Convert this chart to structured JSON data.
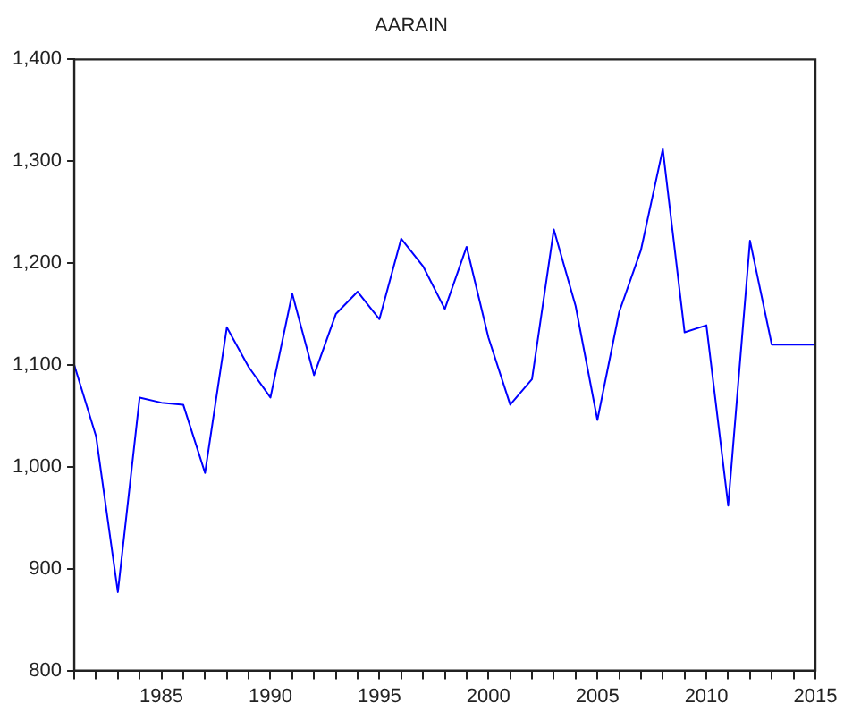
{
  "chart_data": {
    "type": "line",
    "title": "AARAIN",
    "x": [
      1981,
      1982,
      1983,
      1984,
      1985,
      1986,
      1987,
      1988,
      1989,
      1990,
      1991,
      1992,
      1993,
      1994,
      1995,
      1996,
      1997,
      1998,
      1999,
      2000,
      2001,
      2002,
      2003,
      2004,
      2005,
      2006,
      2007,
      2008,
      2009,
      2010,
      2011,
      2012,
      2013,
      2014,
      2015
    ],
    "series": [
      {
        "color": "#0000ff",
        "values": [
          1100,
          1030,
          877,
          1068,
          1063,
          1061,
          994,
          1137,
          1098,
          1068,
          1170,
          1090,
          1150,
          1172,
          1145,
          1224,
          1197,
          1155,
          1216,
          1127,
          1061,
          1086,
          1233,
          1158,
          1046,
          1152,
          1213,
          1312,
          1132,
          1139,
          962,
          1222,
          1120,
          1120,
          1120
        ]
      }
    ],
    "xlim": [
      1981,
      2015
    ],
    "xticks": [
      {
        "value": 1981,
        "label": null
      },
      {
        "value": 1982,
        "label": null
      },
      {
        "value": 1983,
        "label": null
      },
      {
        "value": 1984,
        "label": null
      },
      1985,
      {
        "value": 1986,
        "label": null
      },
      {
        "value": 1987,
        "label": null
      },
      {
        "value": 1988,
        "label": null
      },
      {
        "value": 1989,
        "label": null
      },
      1990,
      {
        "value": 1991,
        "label": null
      },
      {
        "value": 1992,
        "label": null
      },
      {
        "value": 1993,
        "label": null
      },
      {
        "value": 1994,
        "label": null
      },
      1995,
      {
        "value": 1996,
        "label": null
      },
      {
        "value": 1997,
        "label": null
      },
      {
        "value": 1998,
        "label": null
      },
      {
        "value": 1999,
        "label": null
      },
      2000,
      {
        "value": 2001,
        "label": null
      },
      {
        "value": 2002,
        "label": null
      },
      {
        "value": 2003,
        "label": null
      },
      {
        "value": 2004,
        "label": null
      },
      2005,
      {
        "value": 2006,
        "label": null
      },
      {
        "value": 2007,
        "label": null
      },
      {
        "value": 2008,
        "label": null
      },
      {
        "value": 2009,
        "label": null
      },
      2010,
      {
        "value": 2011,
        "label": null
      },
      {
        "value": 2012,
        "label": null
      },
      {
        "value": 2013,
        "label": null
      },
      {
        "value": 2014,
        "label": null
      },
      2015
    ],
    "ylim": [
      800,
      1400
    ],
    "yticks": [
      {
        "value": 800,
        "label": "800"
      },
      {
        "value": 900,
        "label": "900"
      },
      {
        "value": 1000,
        "label": "1,000"
      },
      {
        "value": 1100,
        "label": "1,100"
      },
      {
        "value": 1200,
        "label": "1,200"
      },
      {
        "value": 1300,
        "label": "1,300"
      },
      {
        "value": 1400,
        "label": "1,400"
      }
    ],
    "grid": false,
    "legend": false,
    "marker": "none",
    "line_style": "solid"
  }
}
